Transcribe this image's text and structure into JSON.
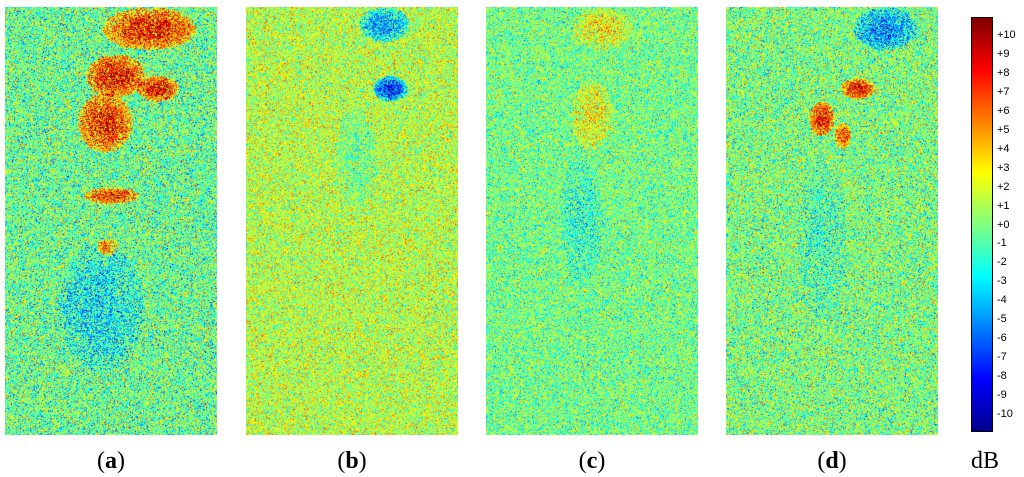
{
  "panels": [
    {
      "id": "a",
      "caption_open": "(",
      "letter": "a",
      "caption_close": ")"
    },
    {
      "id": "b",
      "caption_open": "(",
      "letter": "b",
      "caption_close": ")"
    },
    {
      "id": "c",
      "caption_open": "(",
      "letter": "c",
      "caption_close": ")"
    },
    {
      "id": "d",
      "caption_open": "(",
      "letter": "d",
      "caption_close": ")"
    }
  ],
  "colorbar": {
    "unit": "dB",
    "ticks": [
      "+10",
      "+9",
      "+8",
      "+7",
      "+6",
      "+5",
      "+4",
      "+3",
      "+2",
      "+1",
      "+0",
      "-1",
      "-2",
      "-3",
      "-4",
      "-5",
      "-6",
      "-7",
      "-8",
      "-9",
      "-10"
    ],
    "colors": [
      "#00008f",
      "#0000ff",
      "#0080ff",
      "#00ffff",
      "#80ff80",
      "#ffff00",
      "#ff8000",
      "#ff0000",
      "#800000"
    ]
  }
}
